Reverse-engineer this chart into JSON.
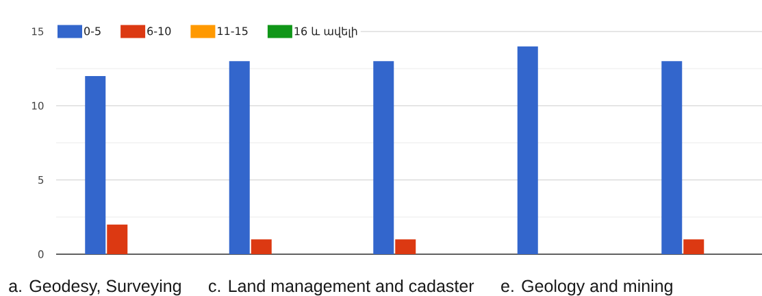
{
  "chart_data": {
    "type": "bar",
    "categories": [
      null,
      null,
      null,
      null,
      null
    ],
    "series": [
      {
        "name": "0-5",
        "color": "#3366cc",
        "values": [
          12,
          13,
          13,
          14,
          13
        ]
      },
      {
        "name": "6-10",
        "color": "#dc3912",
        "values": [
          2,
          1,
          1,
          0,
          1
        ]
      },
      {
        "name": "11-15",
        "color": "#ff9900",
        "values": [
          0,
          0,
          0,
          0,
          0
        ]
      },
      {
        "name": "16 և ավելի",
        "color": "#109618",
        "values": [
          0,
          0,
          0,
          0,
          0
        ]
      }
    ],
    "ylim": [
      0,
      15
    ],
    "yticks": [
      0,
      {
        "value": 2.5,
        "label": null
      },
      5,
      {
        "value": 7.5,
        "label": null
      },
      10,
      {
        "value": 12.5,
        "label": null
      },
      15
    ],
    "grid": "y",
    "legend": "top left",
    "tick_labels": "y",
    "annotations": [
      "a. Geodesy, Surveying",
      "c. Land management and cadaster",
      "e. Geology and mining"
    ]
  }
}
